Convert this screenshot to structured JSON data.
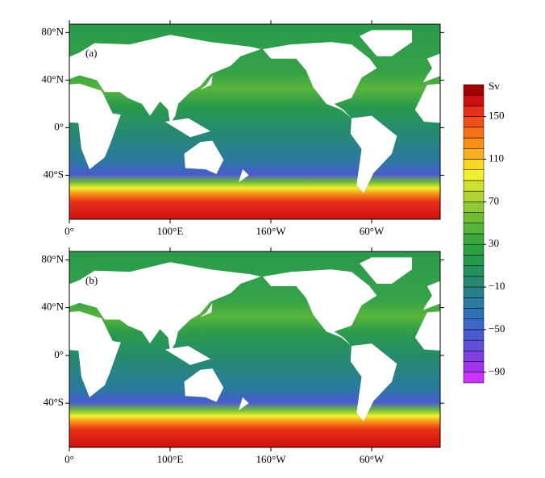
{
  "panels": [
    {
      "label": "(a)"
    },
    {
      "label": "(b)"
    }
  ],
  "lat_ticks": [
    {
      "value": 80,
      "label": "80°N"
    },
    {
      "value": 40,
      "label": "40°N"
    },
    {
      "value": 0,
      "label": "0°"
    },
    {
      "value": -40,
      "label": "40°S"
    }
  ],
  "lon_ticks": [
    {
      "value": 0,
      "label": "0°"
    },
    {
      "value": 100,
      "label": "100°E"
    },
    {
      "value": 200,
      "label": "160°W"
    },
    {
      "value": 300,
      "label": "60°W"
    }
  ],
  "colorbar": {
    "unit": "Sv",
    "range": [
      -100,
      180
    ],
    "ticks": [
      {
        "value": 150,
        "label": "150"
      },
      {
        "value": 110,
        "label": "110"
      },
      {
        "value": 70,
        "label": "70"
      },
      {
        "value": 30,
        "label": "30"
      },
      {
        "value": -10,
        "label": "−10"
      },
      {
        "value": -50,
        "label": "−50"
      },
      {
        "value": -90,
        "label": "−90"
      }
    ],
    "colors": [
      "#cc33ff",
      "#a033f0",
      "#8040e0",
      "#6050d8",
      "#4a5ad0",
      "#3c66c8",
      "#2e70b8",
      "#2a7aa0",
      "#287f8c",
      "#258a70",
      "#229060",
      "#249a4c",
      "#2aa040",
      "#3aa83a",
      "#55b436",
      "#70bc34",
      "#90c832",
      "#b0d430",
      "#d0e030",
      "#f0f030",
      "#f8d820",
      "#f8b020",
      "#f89018",
      "#f87018",
      "#f05018",
      "#e83018",
      "#d01010",
      "#a00000"
    ]
  }
}
